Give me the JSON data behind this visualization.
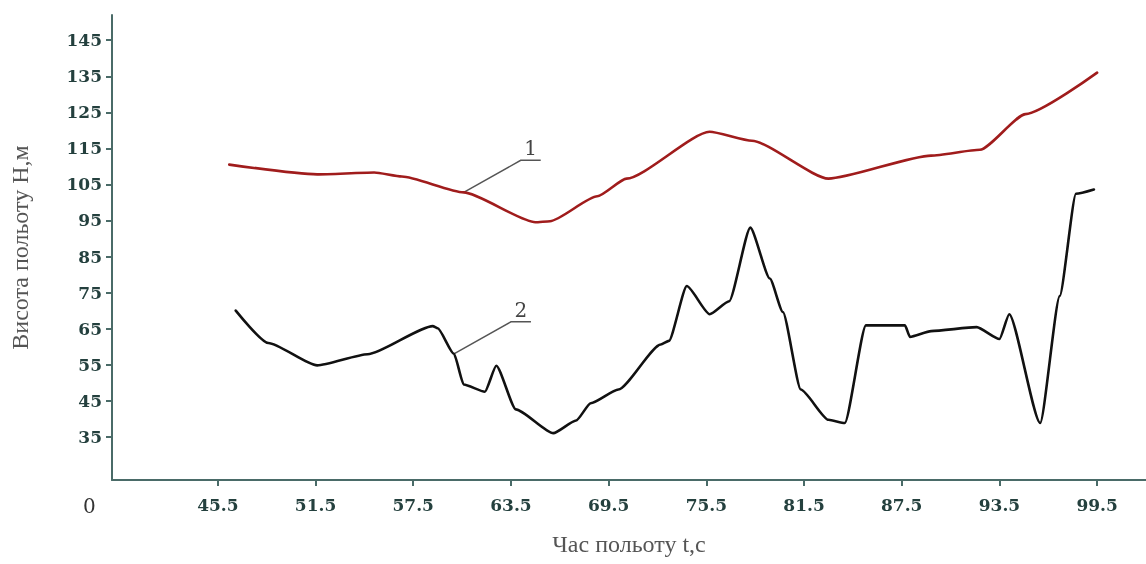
{
  "chart_data": {
    "type": "line",
    "xlabel": "Час польоту t,с",
    "ylabel": "Висота польоту H,м",
    "xlim": [
      39,
      102.5
    ],
    "xticks": [
      45.5,
      51.5,
      57.5,
      63.5,
      69.5,
      75.5,
      81.5,
      87.5,
      93.5,
      99.5
    ],
    "ylim": [
      23,
      152
    ],
    "yticks": [
      35,
      45,
      55,
      65,
      75,
      85,
      95,
      105,
      115,
      125,
      135,
      145
    ],
    "grid": false,
    "marker": "none",
    "line_style": "solid",
    "annotations": [
      "0",
      {
        "text": "1",
        "x": 60.6,
        "y": 102.8
      },
      {
        "text": "2",
        "x": 60.0,
        "y": 58
      }
    ],
    "series": [
      {
        "color": "#a01c1c",
        "x": [
          46.2,
          51.6,
          55.1,
          56.8,
          60.6,
          65.0,
          65.9,
          68.8,
          70.6,
          75.7,
          78.3,
          83.0,
          89.3,
          92.3,
          95.1,
          99.5
        ],
        "values": [
          110.5,
          107.8,
          108.3,
          107.2,
          102.8,
          94.5,
          94.8,
          101.7,
          106.6,
          119.6,
          117.1,
          106.6,
          113,
          114.6,
          124.5,
          136
        ]
      },
      {
        "color": "#111111",
        "x": [
          46.6,
          48.6,
          51.6,
          54.7,
          58.7,
          59.0,
          60.0,
          60.6,
          61.9,
          62.6,
          63.8,
          66.1,
          67.5,
          68.4,
          70.1,
          72.7,
          73.2,
          74.3,
          75.7,
          76.9,
          78.2,
          79.4,
          80.2,
          81.3,
          83.0,
          84.0,
          85.3,
          87.7,
          88.0,
          89.3,
          92.1,
          93.5,
          94.1,
          96.0,
          97.2,
          98.2,
          99.3
        ],
        "values": [
          70,
          61,
          54.8,
          57.9,
          65.7,
          65.1,
          58,
          49.5,
          47.5,
          54.7,
          42.6,
          36.0,
          39.5,
          44.3,
          48.1,
          60.6,
          61.6,
          76.8,
          69,
          72.6,
          93,
          78.9,
          69.6,
          48.1,
          39.7,
          38.8,
          65.9,
          65.9,
          62.7,
          64.3,
          65.4,
          62.1,
          69,
          38.8,
          74,
          102.4,
          103.6
        ]
      }
    ]
  }
}
